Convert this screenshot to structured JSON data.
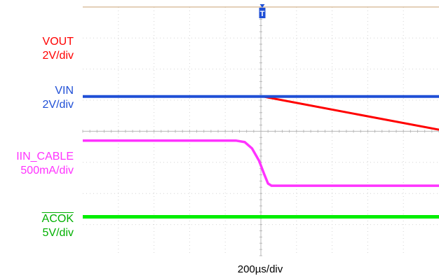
{
  "chart_data": {
    "type": "line",
    "title": "",
    "xlabel": "200µs/div",
    "grid": true,
    "trigger_marker": "T",
    "x_unit": "div",
    "xlim": [
      0,
      10
    ],
    "channels": [
      {
        "name": "VOUT",
        "scale": "2V/div",
        "color": "#ff0000",
        "overline": false,
        "points": [
          [
            0,
            5.12
          ],
          [
            5.05,
            5.12
          ],
          [
            10,
            4.05
          ]
        ]
      },
      {
        "name": "VIN",
        "scale": "2V/div",
        "color": "#1f4fd6",
        "overline": false,
        "points": [
          [
            0,
            5.12
          ],
          [
            10,
            5.12
          ]
        ]
      },
      {
        "name": "IIN_CABLE",
        "scale": "500mA/div",
        "color": "#ff33ff",
        "overline": false,
        "points": [
          [
            0,
            3.7
          ],
          [
            4.3,
            3.7
          ],
          [
            4.55,
            3.65
          ],
          [
            4.75,
            3.45
          ],
          [
            4.95,
            3.05
          ],
          [
            5.1,
            2.6
          ],
          [
            5.2,
            2.32
          ],
          [
            5.3,
            2.25
          ],
          [
            10,
            2.25
          ]
        ]
      },
      {
        "name": "ACOK",
        "scale": "5V/div",
        "color": "#00ee00",
        "overline": true,
        "points": [
          [
            0,
            1.25
          ],
          [
            10,
            1.25
          ]
        ]
      }
    ]
  }
}
